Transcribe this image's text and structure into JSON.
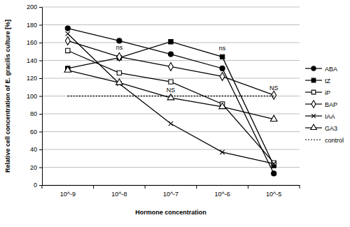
{
  "chart_data": {
    "type": "line",
    "y_label": "Relative cell concentration of E. gracilis culture [%]",
    "x_label": "Hormone concentration",
    "categories": [
      "10^-9",
      "10^-8",
      "10^-7",
      "10^-6",
      "10^-5"
    ],
    "series": [
      {
        "name": "ABA",
        "color": "#000000",
        "marker": "circle",
        "line_style": "solid",
        "values": [
          176,
          162,
          147,
          131,
          13
        ]
      },
      {
        "name": "tZ",
        "color": "#000000",
        "marker": "square",
        "line_style": "solid",
        "values": [
          131,
          143,
          161,
          144,
          22
        ]
      },
      {
        "name": "iP",
        "color": "#000000",
        "marker": "square-open",
        "line_style": "solid",
        "values": [
          151,
          126,
          116,
          91,
          25
        ]
      },
      {
        "name": "BAP",
        "color": "#000000",
        "marker": "diamond-open",
        "line_style": "solid",
        "values": [
          162,
          144,
          133,
          122,
          101
        ]
      },
      {
        "name": "IAA",
        "color": "#000000",
        "marker": "x",
        "line_style": "solid",
        "values": [
          170,
          114,
          69,
          37,
          24
        ]
      },
      {
        "name": "GA3",
        "color": "#000000",
        "marker": "triangle-open",
        "line_style": "solid",
        "values": [
          129,
          115,
          98,
          88,
          74
        ]
      },
      {
        "name": "control",
        "color": "#000000",
        "marker": "none",
        "line_style": "dotted",
        "values": [
          100,
          100,
          100,
          100,
          100
        ]
      }
    ],
    "annotations": [
      {
        "text": "ns",
        "x": "10^-8",
        "y": 152
      },
      {
        "text": "NS",
        "x": "10^-7",
        "y": 104
      },
      {
        "text": "ns",
        "x": "10^-6",
        "y": 151
      },
      {
        "text": "NS",
        "x": "10^-5",
        "y": 107
      }
    ],
    "ylim": [
      0,
      200
    ],
    "yticks": [
      0,
      20,
      40,
      60,
      80,
      100,
      120,
      140,
      160,
      180,
      200
    ],
    "grid": true,
    "legend": "right"
  }
}
